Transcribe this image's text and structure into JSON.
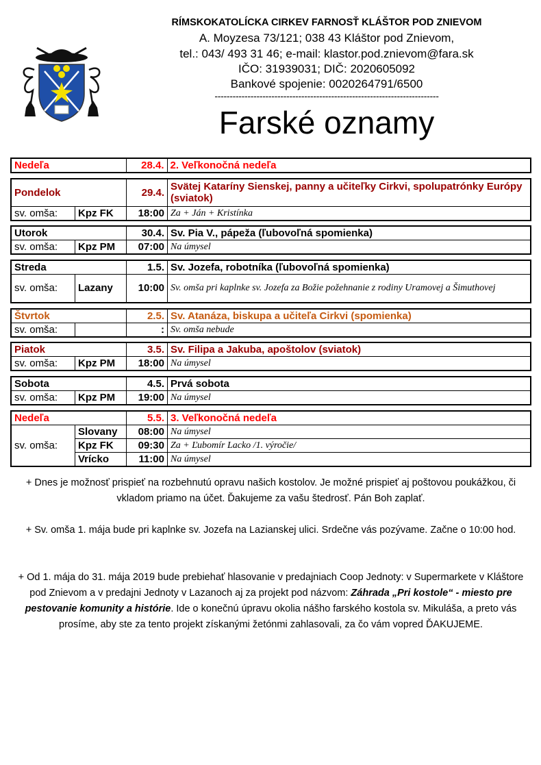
{
  "header": {
    "org": "RÍMSKOKATOLÍCKA CIRKEV FARNOSŤ KLÁŠTOR POD ZNIEVOM",
    "address": "A. Moyzesa 73/121; 038 43 Kláštor pod Znievom,",
    "contact": "tel.: 043/ 493 31 46; e-mail: klastor.pod.znievom@fara.sk",
    "ids": "IČO: 31939031; DIČ: 2020605092",
    "bank": "Bankové spojenie: 0020264791/6500",
    "separator": "---------------------------------------------------------------------------",
    "title": "Farské oznamy"
  },
  "colors": {
    "sunday": "#ff0000",
    "feast": "#990000",
    "memorial": "#c55a11"
  },
  "days": [
    {
      "day": "Nedeľa",
      "date": "28.4.",
      "title": "2. Veľkonočná nedeľa",
      "color": "red",
      "masses": []
    },
    {
      "day": "Pondelok",
      "date": "29.4.",
      "title": "Svätej Kataríny Sienskej, panny a učiteľky Cirkvi, spolupatrónky Európy (sviatok)",
      "color": "dred",
      "masses": [
        {
          "label": "sv. omša:",
          "place": "Kpz FK",
          "time": "18:00",
          "intention": "Za + Ján + Kristínka"
        }
      ]
    },
    {
      "day": "Utorok",
      "date": "30.4.",
      "title": "Sv. Pia V., pápeža (ľubovoľná spomienka)",
      "color": "",
      "masses": [
        {
          "label": "sv. omša:",
          "place": "Kpz PM",
          "time": "07:00",
          "intention": "Na úmysel"
        }
      ]
    },
    {
      "day": "Streda",
      "date": "1.5.",
      "title": "Sv. Jozefa, robotníka (ľubovoľná spomienka)",
      "color": "",
      "masses": [
        {
          "label": "sv. omša:",
          "place": "Lazany",
          "time": "10:00",
          "intention": "Sv. omša pri kaplnke sv. Jozefa za Božie požehnanie z rodiny Uramovej a Šimuthovej"
        }
      ]
    },
    {
      "day": "Štvrtok",
      "date": "2.5.",
      "title": "Sv. Atanáza, biskupa a učiteľa Cirkvi (spomienka)",
      "color": "org",
      "masses": [
        {
          "label": "sv. omša:",
          "place": "",
          "time": ":",
          "intention": "Sv. omša nebude"
        }
      ]
    },
    {
      "day": "Piatok",
      "date": "3.5.",
      "title": "Sv. Filipa a Jakuba, apoštolov (sviatok)",
      "color": "dred",
      "masses": [
        {
          "label": "sv. omša:",
          "place": "Kpz PM",
          "time": "18:00",
          "intention": "Na úmysel"
        }
      ]
    },
    {
      "day": "Sobota",
      "date": "4.5.",
      "title": "Prvá sobota",
      "color": "",
      "masses": [
        {
          "label": "sv. omša:",
          "place": "Kpz PM",
          "time": "19:00",
          "intention": "Na úmysel"
        }
      ]
    },
    {
      "day": "Nedeľa",
      "date": "5.5.",
      "title": "3. Veľkonočná nedeľa",
      "color": "red",
      "masses": [
        {
          "label": "sv. omša:",
          "place": "Slovany",
          "time": "08:00",
          "intention": "Na úmysel"
        },
        {
          "place": "Kpz FK",
          "time": "09:30",
          "intention": "Za + Ľubomír Lacko /1. výročie/"
        },
        {
          "place": "Vrícko",
          "time": "11:00",
          "intention": "Na úmysel"
        }
      ]
    }
  ],
  "notes": {
    "n1": "+ Dnes je možnosť prispieť na rozbehnutú opravu našich kostolov. Je možné prispieť aj poštovou poukážkou, či vkladom priamo na účet. Ďakujeme za vašu štedrosť. Pán Boh zaplať.",
    "n2": "+ Sv. omša 1. mája bude pri kaplnke sv. Jozefa na Lazianskej ulici. Srdečne vás pozývame. Začne o 10:00 hod.",
    "n3a": "+ Od 1. mája do 31. mája 2019 bude prebiehať hlasovanie v predajniach Coop Jednoty:  v Supermarkete v Kláštore pod Znievom a v predajni Jednoty v Lazanoch aj za projekt pod názvom: ",
    "n3b": "Záhrada „Pri kostole“ - miesto pre pestovanie komunity a histórie",
    "n3c": ". Ide o konečnú úpravu okolia nášho farského kostola sv. Mikuláša, a preto vás prosíme, aby ste za tento projekt získanými žetónmi zahlasovali, za čo vám vopred ĎAKUJEME."
  }
}
